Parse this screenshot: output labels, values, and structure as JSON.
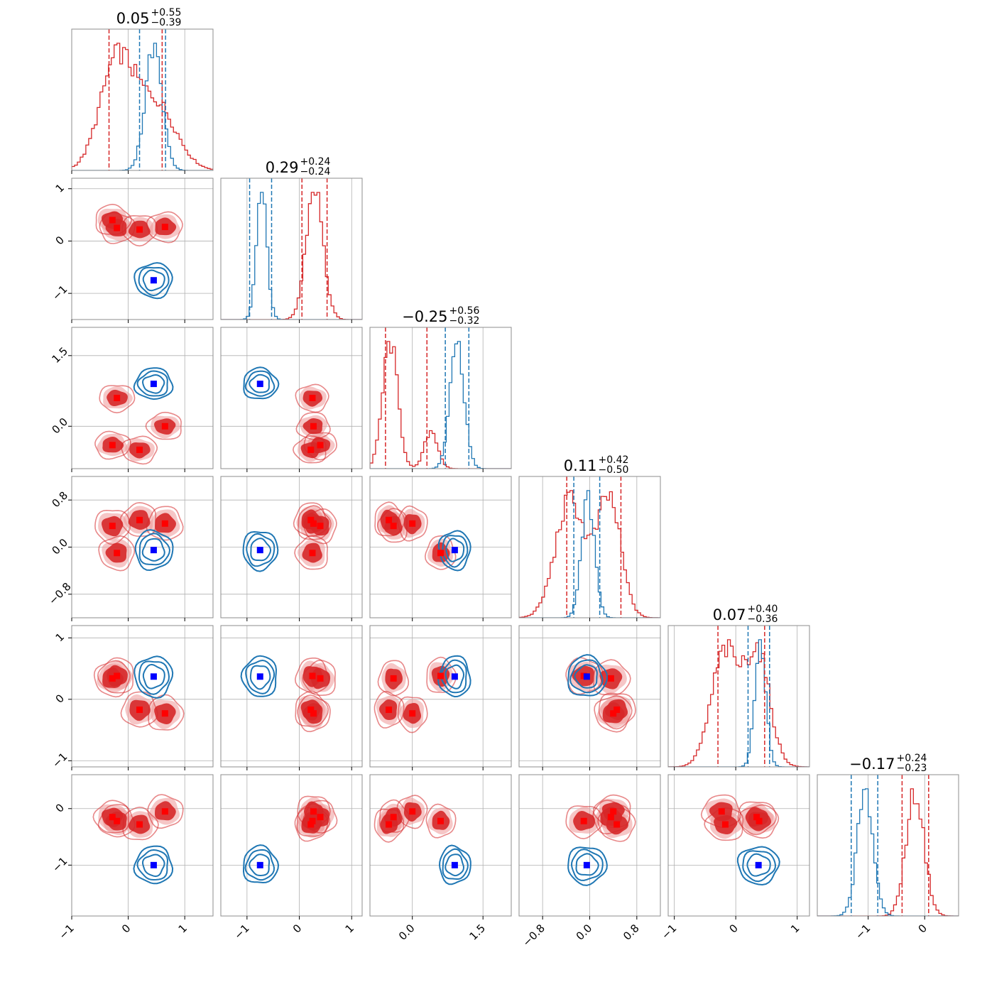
{
  "chart_data": {
    "type": "scatter",
    "title": "",
    "grid": true,
    "n_params": 6,
    "colors": {
      "model_a": "#d62728",
      "model_a_fill": "#ee9898",
      "model_b": "#1f77b4",
      "marker_a": "#ff0000",
      "marker_b": "#0000ff"
    },
    "ranges": [
      [
        -1.0,
        1.5
      ],
      [
        -1.5,
        1.2
      ],
      [
        -0.9,
        2.1
      ],
      [
        -1.2,
        1.2
      ],
      [
        -1.1,
        1.2
      ],
      [
        -1.9,
        0.6
      ]
    ],
    "ticks": [
      {
        "values": [
          -1,
          0,
          1
        ],
        "labels": [
          "−1",
          "0",
          "1"
        ]
      },
      {
        "values": [
          -1,
          0,
          1
        ],
        "labels": [
          "−1",
          "0",
          "1"
        ]
      },
      {
        "values": [
          0.0,
          1.5
        ],
        "labels": [
          "0.0",
          "1.5"
        ]
      },
      {
        "values": [
          -0.8,
          0.0,
          0.8
        ],
        "labels": [
          "−0.8",
          "0.0",
          "0.8"
        ]
      },
      {
        "values": [
          -1,
          0,
          1
        ],
        "labels": [
          "−1",
          "0",
          "1"
        ]
      },
      {
        "values": [
          -1,
          0
        ],
        "labels": [
          "−1",
          "0"
        ]
      }
    ],
    "titles": [
      {
        "median": "0.05",
        "plus": "+0.55",
        "minus": "−0.39"
      },
      {
        "median": "0.29",
        "plus": "+0.24",
        "minus": "−0.24"
      },
      {
        "median": "−0.25",
        "plus": "+0.56",
        "minus": "−0.32"
      },
      {
        "median": "0.11",
        "plus": "+0.42",
        "minus": "−0.50"
      },
      {
        "median": "0.07",
        "plus": "+0.40",
        "minus": "−0.36"
      },
      {
        "median": "−0.17",
        "plus": "+0.24",
        "minus": "−0.23"
      }
    ],
    "quantiles_a": [
      [
        -0.34,
        0.6
      ],
      [
        0.05,
        0.53
      ],
      [
        -0.57,
        0.31
      ],
      [
        -0.39,
        0.53
      ],
      [
        -0.29,
        0.47
      ],
      [
        -0.4,
        0.07
      ]
    ],
    "quantiles_b": [
      [
        0.2,
        0.66
      ],
      [
        -0.95,
        -0.53
      ],
      [
        0.7,
        1.2
      ],
      [
        -0.27,
        0.17
      ],
      [
        0.2,
        0.55
      ],
      [
        -1.3,
        -0.83
      ]
    ],
    "hist_a": {
      "modes": [
        [
          [
            -0.2,
            0.3,
            1.0
          ],
          [
            0.5,
            0.35,
            0.6
          ]
        ],
        [
          [
            0.29,
            0.16,
            1.0
          ]
        ],
        [
          [
            -0.47,
            0.16,
            1.0
          ],
          [
            0.4,
            0.14,
            0.3
          ]
        ],
        [
          [
            -0.33,
            0.25,
            1.0
          ],
          [
            0.33,
            0.2,
            1.0
          ]
        ],
        [
          [
            -0.18,
            0.22,
            1.0
          ],
          [
            0.35,
            0.2,
            1.0
          ]
        ],
        [
          [
            -0.17,
            0.16,
            1.0
          ]
        ]
      ]
    },
    "hist_b": {
      "modes": [
        [
          [
            0.45,
            0.15,
            1.0
          ]
        ],
        [
          [
            -0.72,
            0.1,
            1.0
          ]
        ],
        [
          [
            0.95,
            0.15,
            1.0
          ]
        ],
        [
          [
            -0.03,
            0.11,
            1.0
          ]
        ],
        [
          [
            0.4,
            0.09,
            1.0
          ]
        ],
        [
          [
            -1.05,
            0.14,
            1.0
          ]
        ]
      ]
    },
    "points_a": [
      [
        -0.28,
        0.4,
        -0.4,
        0.36,
        0.34,
        -0.15
      ],
      [
        -0.2,
        0.25,
        0.6,
        -0.1,
        0.38,
        -0.22
      ],
      [
        0.2,
        0.22,
        -0.5,
        0.46,
        -0.17,
        -0.28
      ],
      [
        0.65,
        0.27,
        0.0,
        0.4,
        -0.23,
        -0.05
      ]
    ],
    "points_b": [
      0.45,
      -0.75,
      0.9,
      -0.05,
      0.37,
      -1.0
    ]
  }
}
